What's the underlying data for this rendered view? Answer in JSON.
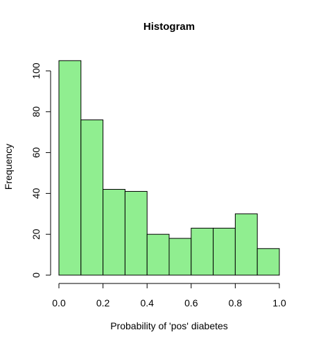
{
  "chart_data": {
    "type": "bar",
    "title": "Histogram",
    "xlabel": "Probability of 'pos' diabetes",
    "ylabel": "Frequency",
    "bins": [
      [
        0.0,
        0.1
      ],
      [
        0.1,
        0.2
      ],
      [
        0.2,
        0.3
      ],
      [
        0.3,
        0.4
      ],
      [
        0.4,
        0.5
      ],
      [
        0.5,
        0.6
      ],
      [
        0.6,
        0.7
      ],
      [
        0.7,
        0.8
      ],
      [
        0.8,
        0.9
      ],
      [
        0.9,
        1.0
      ]
    ],
    "values": [
      105,
      76,
      42,
      41,
      20,
      18,
      23,
      23,
      30,
      13
    ],
    "xlim": [
      0.0,
      1.0
    ],
    "ylim": [
      0,
      105
    ],
    "xticks": [
      0.0,
      0.2,
      0.4,
      0.6,
      0.8,
      1.0
    ],
    "xtick_labels": [
      "0.0",
      "0.2",
      "0.4",
      "0.6",
      "0.8",
      "1.0"
    ],
    "yticks": [
      0,
      20,
      40,
      60,
      80,
      100
    ],
    "ytick_labels": [
      "0",
      "20",
      "40",
      "60",
      "80",
      "100"
    ],
    "bar_color": "#90EE90",
    "edge_color": "#000000",
    "grid": false
  }
}
